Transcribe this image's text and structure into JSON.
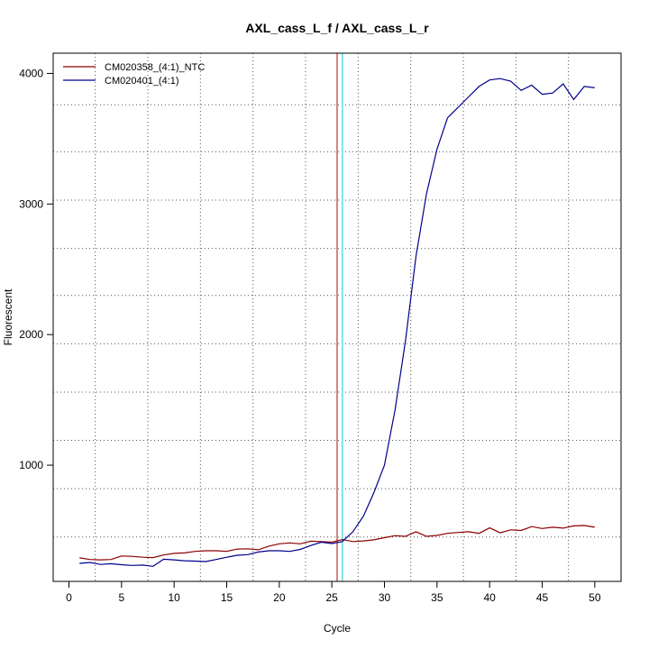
{
  "chart_data": {
    "type": "line",
    "title": "AXL_cass_L_f / AXL_cass_L_r",
    "xlabel": "Cycle",
    "ylabel": "Fluorescent",
    "xlim": [
      -1.5,
      52.5
    ],
    "ylim": [
      110,
      4155
    ],
    "x_ticks": [
      0,
      5,
      10,
      15,
      20,
      25,
      30,
      35,
      40,
      45,
      50
    ],
    "y_ticks": [
      1000,
      2000,
      3000,
      4000
    ],
    "vertical_grid_x": [
      2.5,
      7.5,
      12.5,
      17.5,
      22.5,
      27.5,
      32.5,
      37.5,
      42.5,
      47.5
    ],
    "horizontal_grid_y": [
      450,
      820,
      1190,
      1560,
      1930,
      2300,
      2660,
      3030,
      3400,
      3760
    ],
    "grid": true,
    "legend_position": "top-left",
    "threshold_lines": [
      {
        "x": 25.5,
        "color": "#cc8888"
      },
      {
        "x": 26.0,
        "color": "#7fe5e5"
      }
    ],
    "x": [
      1,
      2,
      3,
      4,
      5,
      6,
      7,
      8,
      9,
      10,
      11,
      12,
      13,
      14,
      15,
      16,
      17,
      18,
      19,
      20,
      21,
      22,
      23,
      24,
      25,
      26,
      27,
      28,
      29,
      30,
      31,
      32,
      33,
      34,
      35,
      36,
      37,
      38,
      39,
      40,
      41,
      42,
      43,
      44,
      45,
      46,
      47,
      48,
      49,
      50
    ],
    "series": [
      {
        "name": "CM020358_(4:1)_NTC",
        "color": "#8b0000",
        "values": [
          290,
          278,
          275,
          278,
          305,
          302,
          295,
          292,
          312,
          325,
          328,
          340,
          345,
          345,
          340,
          358,
          360,
          352,
          380,
          398,
          405,
          398,
          418,
          415,
          410,
          430,
          415,
          420,
          428,
          445,
          460,
          455,
          490,
          455,
          462,
          478,
          485,
          490,
          478,
          520,
          482,
          505,
          500,
          530,
          515,
          525,
          518,
          535,
          538,
          525
        ]
      },
      {
        "name": "CM020401_(4:1)",
        "color": "#00008b",
        "values": [
          248,
          255,
          240,
          245,
          238,
          232,
          235,
          225,
          280,
          275,
          268,
          265,
          262,
          278,
          295,
          310,
          315,
          335,
          345,
          345,
          340,
          355,
          385,
          410,
          400,
          415,
          490,
          610,
          790,
          1000,
          1420,
          1950,
          2600,
          3080,
          3420,
          3660,
          3740,
          3820,
          3900,
          3950,
          3960,
          3940,
          3870,
          3910,
          3840,
          3850,
          3920,
          3800,
          3900,
          3890
        ]
      }
    ]
  }
}
